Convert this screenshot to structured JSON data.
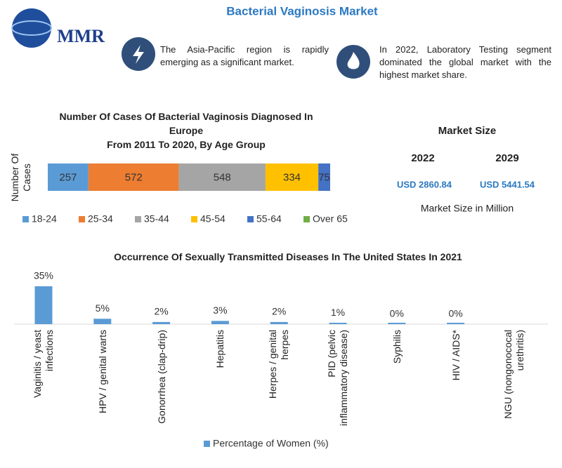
{
  "header": {
    "logo": "MMR",
    "title": "Bacterial Vaginosis Market"
  },
  "facts": [
    "The Asia-Pacific region is rapidly emerging as a significant market.",
    "In 2022, Laboratory Testing segment dominated the global market with the highest market share."
  ],
  "market_size": {
    "title": "Market Size",
    "years": [
      "2022",
      "2029"
    ],
    "values": [
      "USD 2860.84",
      "USD 5441.54"
    ],
    "note": "Market Size in Million"
  },
  "chart_data": [
    {
      "type": "stacked_bar",
      "title": "Number Of Cases Of Bacterial Vaginosis Diagnosed In Europe",
      "subtitle": "From 2011 To 2020, By Age Group",
      "ylabel": "Number Of Cases",
      "series": [
        {
          "name": "18-24",
          "color": "#5b9bd5",
          "values": [
            257
          ]
        },
        {
          "name": "25-34",
          "color": "#ed7d31",
          "values": [
            572
          ]
        },
        {
          "name": "35-44",
          "color": "#a5a5a5",
          "values": [
            548
          ]
        },
        {
          "name": "45-54",
          "color": "#ffc000",
          "values": [
            334
          ]
        },
        {
          "name": "55-64",
          "color": "#4472c4",
          "values": [
            75
          ]
        },
        {
          "name": "Over 65",
          "color": "#70ad47",
          "values": [
            null
          ]
        }
      ]
    },
    {
      "type": "bar",
      "title": "Occurrence Of Sexually Transmitted Diseases In The United States In 2021",
      "categories": [
        "Vaginitis / yeast infections",
        "HPV / genital warts",
        "Gonorrhea (clap-drip)",
        "Hepatitis",
        "Herpes / genital herpes",
        "PID (pelvic inflammatory disease)",
        "Syphilis",
        "HIV / AIDS*",
        "NGU (nongonococal urethritis)"
      ],
      "series": [
        {
          "name": "Percentage of Women (%)",
          "color": "#5b9bd5",
          "values": [
            35,
            5,
            2,
            3,
            2,
            1,
            0,
            0,
            null
          ],
          "value_labels": [
            "35%",
            "5%",
            "2%",
            "3%",
            "2%",
            "1%",
            "0%",
            "0%",
            null
          ]
        }
      ]
    }
  ]
}
